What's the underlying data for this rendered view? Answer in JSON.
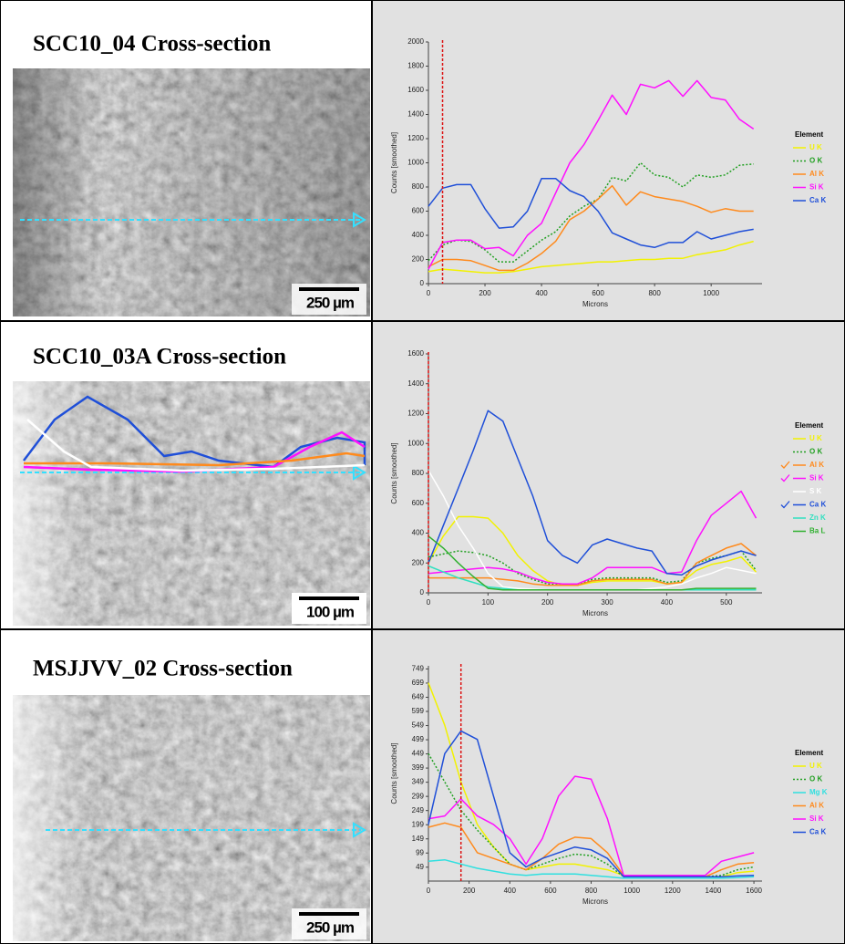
{
  "panels": [
    {
      "title": "SCC10_04 Cross-section",
      "scale_bar": "250 µm"
    },
    {
      "title": "SCC10_03A Cross-section",
      "scale_bar": "100 µm"
    },
    {
      "title": "MSJJVV_02 Cross-section",
      "scale_bar": "250 µm"
    }
  ],
  "chart_data": [
    {
      "type": "line",
      "x_label": "Microns",
      "y_label": "Counts [smoothed]",
      "legend_title": "Element",
      "xlim": [
        0,
        1180
      ],
      "ylim": [
        0,
        2000
      ],
      "xticks": [
        0,
        200,
        400,
        600,
        800,
        1000
      ],
      "yticks": [
        0,
        200,
        400,
        600,
        800,
        1000,
        1200,
        1400,
        1600,
        1800,
        2000
      ],
      "cursor_x": 50,
      "x": [
        0,
        50,
        100,
        150,
        200,
        250,
        300,
        350,
        400,
        450,
        500,
        550,
        600,
        650,
        700,
        750,
        800,
        850,
        900,
        950,
        1000,
        1050,
        1100,
        1150
      ],
      "series": [
        {
          "name": "U K",
          "color": "#f2f200",
          "values": [
            100,
            120,
            110,
            100,
            90,
            90,
            100,
            120,
            140,
            150,
            160,
            170,
            180,
            180,
            190,
            200,
            200,
            210,
            210,
            240,
            260,
            280,
            320,
            350
          ]
        },
        {
          "name": "O K",
          "color": "#22a022",
          "dotted": true,
          "values": [
            190,
            320,
            360,
            350,
            280,
            180,
            180,
            270,
            360,
            430,
            560,
            640,
            700,
            880,
            850,
            1000,
            900,
            880,
            800,
            900,
            880,
            900,
            980,
            990
          ]
        },
        {
          "name": "Al K",
          "color": "#ff8a1c",
          "values": [
            140,
            200,
            200,
            190,
            150,
            110,
            110,
            170,
            250,
            350,
            530,
            600,
            700,
            810,
            650,
            760,
            720,
            700,
            680,
            640,
            590,
            620,
            600,
            600
          ]
        },
        {
          "name": "Si K",
          "color": "#ff10ff",
          "values": [
            120,
            340,
            360,
            360,
            290,
            300,
            230,
            400,
            500,
            750,
            1000,
            1150,
            1350,
            1560,
            1400,
            1650,
            1620,
            1680,
            1550,
            1680,
            1540,
            1520,
            1360,
            1280
          ]
        },
        {
          "name": "Ca K",
          "color": "#1f4fd8",
          "values": [
            640,
            790,
            820,
            820,
            620,
            460,
            470,
            600,
            870,
            870,
            770,
            720,
            600,
            420,
            370,
            320,
            300,
            340,
            340,
            430,
            370,
            400,
            430,
            450
          ]
        }
      ]
    },
    {
      "type": "line",
      "x_label": "Microns",
      "y_label": "Counts [smoothed]",
      "legend_title": "Element",
      "xlim": [
        0,
        560
      ],
      "ylim": [
        0,
        1600
      ],
      "xticks": [
        0,
        100,
        200,
        300,
        400,
        500
      ],
      "yticks": [
        0,
        200,
        400,
        600,
        800,
        1000,
        1200,
        1400,
        1600
      ],
      "cursor_x": 0,
      "x": [
        0,
        25,
        50,
        75,
        100,
        125,
        150,
        175,
        200,
        225,
        250,
        275,
        300,
        325,
        350,
        375,
        400,
        425,
        450,
        475,
        500,
        525,
        550
      ],
      "series": [
        {
          "name": "U K",
          "color": "#f2f200",
          "values": [
            200,
            380,
            510,
            510,
            500,
            400,
            250,
            150,
            80,
            50,
            50,
            70,
            80,
            80,
            80,
            80,
            60,
            70,
            150,
            190,
            210,
            240,
            140
          ]
        },
        {
          "name": "O K",
          "color": "#22a022",
          "dotted": true,
          "values": [
            240,
            260,
            280,
            270,
            250,
            200,
            130,
            90,
            60,
            50,
            50,
            90,
            100,
            100,
            100,
            100,
            70,
            80,
            200,
            230,
            250,
            280,
            150
          ]
        },
        {
          "name": "Al K",
          "color": "#ff8a1c",
          "checked": true,
          "values": [
            100,
            100,
            100,
            100,
            100,
            90,
            80,
            60,
            50,
            50,
            50,
            80,
            90,
            90,
            90,
            90,
            60,
            70,
            200,
            250,
            300,
            330,
            250
          ]
        },
        {
          "name": "Si K",
          "color": "#ff10ff",
          "checked": true,
          "values": [
            130,
            140,
            150,
            160,
            170,
            160,
            140,
            100,
            70,
            60,
            60,
            100,
            170,
            170,
            170,
            170,
            130,
            140,
            350,
            520,
            600,
            680,
            500
          ]
        },
        {
          "name": "S K",
          "color": "#ffffff",
          "values": [
            820,
            650,
            450,
            300,
            130,
            40,
            30,
            25,
            20,
            20,
            20,
            20,
            20,
            20,
            20,
            30,
            40,
            60,
            100,
            130,
            170,
            150,
            130
          ]
        },
        {
          "name": "Ca K",
          "color": "#1f4fd8",
          "checked": true,
          "values": [
            200,
            450,
            700,
            950,
            1220,
            1150,
            900,
            650,
            350,
            250,
            200,
            320,
            360,
            330,
            300,
            280,
            130,
            120,
            180,
            220,
            250,
            280,
            250
          ]
        },
        {
          "name": "Zn K",
          "color": "#30e0c0",
          "values": [
            180,
            140,
            100,
            70,
            40,
            30,
            20,
            20,
            20,
            20,
            20,
            20,
            20,
            20,
            20,
            20,
            20,
            20,
            20,
            20,
            20,
            20,
            20
          ]
        },
        {
          "name": "Ba L",
          "color": "#30b030",
          "values": [
            380,
            300,
            200,
            110,
            30,
            20,
            20,
            20,
            20,
            20,
            20,
            20,
            20,
            20,
            20,
            20,
            20,
            20,
            30,
            30,
            30,
            30,
            30
          ]
        }
      ]
    },
    {
      "type": "line",
      "x_label": "Microns",
      "y_label": "Counts [smoothed]",
      "legend_title": "Element",
      "xlim": [
        0,
        1640
      ],
      "ylim": [
        0,
        760
      ],
      "xticks": [
        0,
        200,
        400,
        600,
        800,
        1000,
        1200,
        1400,
        1600
      ],
      "yticks": [
        49,
        99,
        149,
        199,
        249,
        299,
        349,
        399,
        449,
        499,
        549,
        599,
        649,
        699,
        749
      ],
      "cursor_x": 160,
      "x": [
        0,
        80,
        160,
        240,
        320,
        400,
        480,
        560,
        640,
        720,
        800,
        880,
        960,
        1040,
        1120,
        1200,
        1280,
        1360,
        1440,
        1520,
        1600
      ],
      "series": [
        {
          "name": "U K",
          "color": "#f2f200",
          "values": [
            700,
            550,
            350,
            200,
            120,
            60,
            40,
            50,
            60,
            60,
            50,
            40,
            20,
            15,
            15,
            15,
            15,
            15,
            15,
            30,
            35
          ]
        },
        {
          "name": "O K",
          "color": "#22a022",
          "dotted": true,
          "values": [
            450,
            350,
            250,
            180,
            120,
            60,
            40,
            60,
            80,
            95,
            90,
            60,
            15,
            15,
            15,
            15,
            15,
            15,
            20,
            40,
            50
          ]
        },
        {
          "name": "Mg K",
          "color": "#30e0e0",
          "values": [
            70,
            75,
            60,
            45,
            35,
            25,
            20,
            25,
            25,
            25,
            20,
            15,
            10,
            10,
            10,
            10,
            10,
            10,
            10,
            12,
            15
          ]
        },
        {
          "name": "Al K",
          "color": "#ff8a1c",
          "values": [
            190,
            205,
            190,
            100,
            80,
            60,
            40,
            80,
            130,
            155,
            150,
            100,
            20,
            15,
            15,
            15,
            15,
            15,
            40,
            60,
            65
          ]
        },
        {
          "name": "Si K",
          "color": "#ff10ff",
          "values": [
            220,
            230,
            290,
            230,
            200,
            150,
            60,
            150,
            300,
            370,
            360,
            220,
            20,
            20,
            20,
            20,
            20,
            20,
            70,
            85,
            100
          ]
        },
        {
          "name": "Ca K",
          "color": "#1f4fd8",
          "values": [
            200,
            450,
            530,
            500,
            300,
            100,
            50,
            80,
            100,
            120,
            110,
            80,
            15,
            15,
            15,
            15,
            15,
            15,
            15,
            18,
            20
          ]
        }
      ]
    }
  ]
}
